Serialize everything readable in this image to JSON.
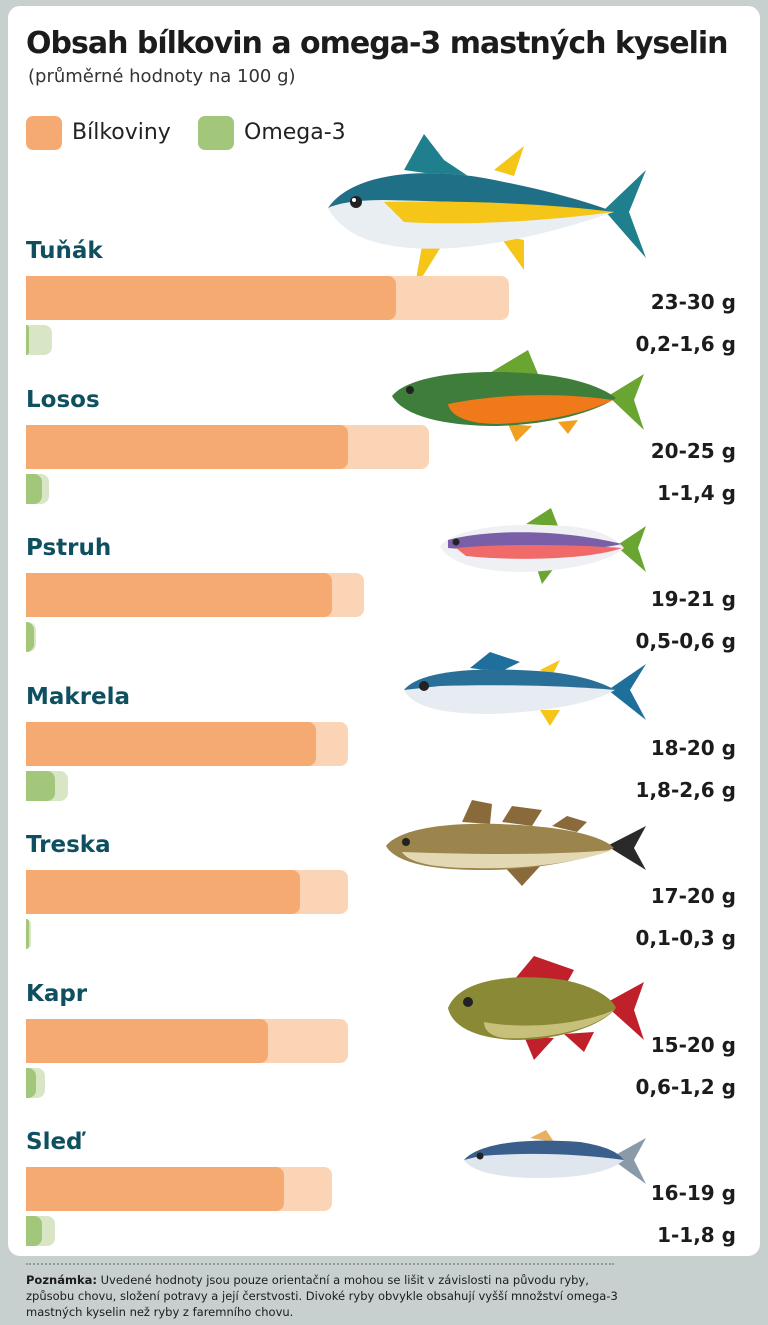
{
  "title": "Obsah bílkovin a omega-3 mastných kyselin",
  "subtitle": "(průměrné hodnoty na 100 g)",
  "legend": {
    "protein": "Bílkoviny",
    "omega": "Omega-3"
  },
  "colors": {
    "protein_min": "#f5aa71",
    "protein_range": "#fbd4b6",
    "omega_min": "#a2c67a",
    "omega_range": "#d8e6c6",
    "title": "#1c1c1c",
    "fish_name": "#0f5060",
    "background": "#c7cfcf"
  },
  "chart_data": {
    "type": "bar",
    "orientation": "horizontal",
    "title": "Obsah bílkovin a omega-3 mastných kyselin",
    "subtitle": "(průměrné hodnoty na 100 g)",
    "legend_position": "top-left",
    "grid": false,
    "categories": [
      "Tuňák",
      "Losos",
      "Pstruh",
      "Makrela",
      "Treska",
      "Kapr",
      "Sleď"
    ],
    "series": [
      {
        "name": "Bílkoviny",
        "unit": "g",
        "min": [
          23,
          20,
          19,
          18,
          17,
          15,
          16
        ],
        "max": [
          30,
          25,
          21,
          20,
          20,
          20,
          19
        ],
        "labels": [
          "23-30 g",
          "20-25 g",
          "19-21 g",
          "18-20 g",
          "17-20 g",
          "15-20 g",
          "16-19 g"
        ]
      },
      {
        "name": "Omega-3",
        "unit": "g",
        "min": [
          0.2,
          1,
          0.5,
          1.8,
          0.1,
          0.6,
          1
        ],
        "max": [
          1.6,
          1.4,
          0.6,
          2.6,
          0.3,
          1.2,
          1.8
        ],
        "labels": [
          "0,2-1,6 g",
          "1-1,4 g",
          "0,5-0,6 g",
          "1,8-2,6 g",
          "0,1-0,3 g",
          "0,6-1,2 g",
          "1-1,8 g"
        ]
      }
    ]
  },
  "fish_icons": [
    "tuna-icon",
    "salmon-icon",
    "trout-icon",
    "mackerel-icon",
    "cod-icon",
    "carp-icon",
    "herring-icon"
  ],
  "footnote": {
    "label": "Poznámka:",
    "text": " Uvedené hodnoty jsou pouze orientační a mohou se lišit v závislosti na původu ryby, způsobu chovu, složení potravy a její čerstvosti. Divoké ryby obvykle obsahují vyšší množství omega-3 mastných kyselin než ryby z faremního chovu."
  }
}
